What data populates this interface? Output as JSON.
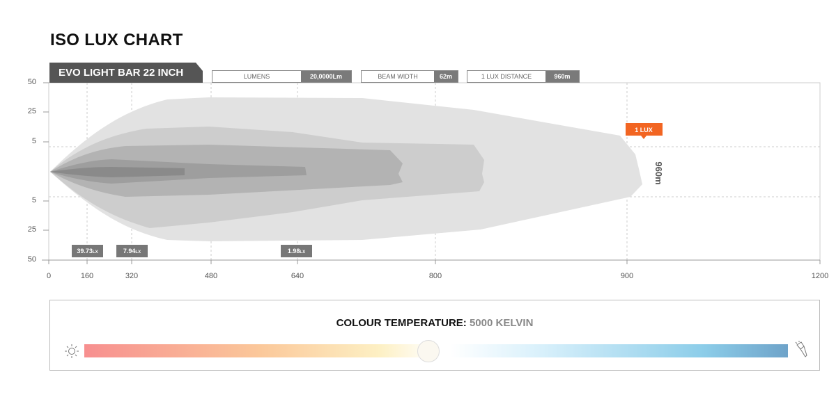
{
  "title": "ISO LUX CHART",
  "product_tab": "EVO LIGHT BAR 22 INCH",
  "specs": [
    {
      "label": "LUMENS",
      "value": "20,0000Lm"
    },
    {
      "label": "BEAM WIDTH",
      "value": "62m"
    },
    {
      "label": "1 LUX DISTANCE",
      "value": "960m"
    }
  ],
  "chart_data": {
    "type": "area",
    "title": "ISO LUX CHART",
    "x_ticks": [
      "0",
      "160",
      "320",
      "480",
      "640",
      "800",
      "900",
      "1200"
    ],
    "y_ticks": [
      "50",
      "25",
      "5",
      "5",
      "25",
      "50"
    ],
    "grid": true,
    "lux_labels": [
      {
        "x": 160,
        "value": "39.73",
        "unit": "LX"
      },
      {
        "x": 320,
        "value": "7.94",
        "unit": "LX"
      },
      {
        "x": 640,
        "value": "1.98",
        "unit": "LX"
      }
    ],
    "one_lux_marker": {
      "label": "1 LUX",
      "distance": "960m",
      "color": "#f26522"
    },
    "fill_colors": [
      "#e2e2e2",
      "#cdcdcd",
      "#b3b3b3",
      "#9e9e9e",
      "#8a8a8a"
    ]
  },
  "colour_temperature": {
    "label": "COLOUR TEMPERATURE:",
    "value": "5000 KELVIN",
    "position_percent": 49,
    "left_icon": "sun-icon",
    "right_icon": "flashlight-icon"
  }
}
